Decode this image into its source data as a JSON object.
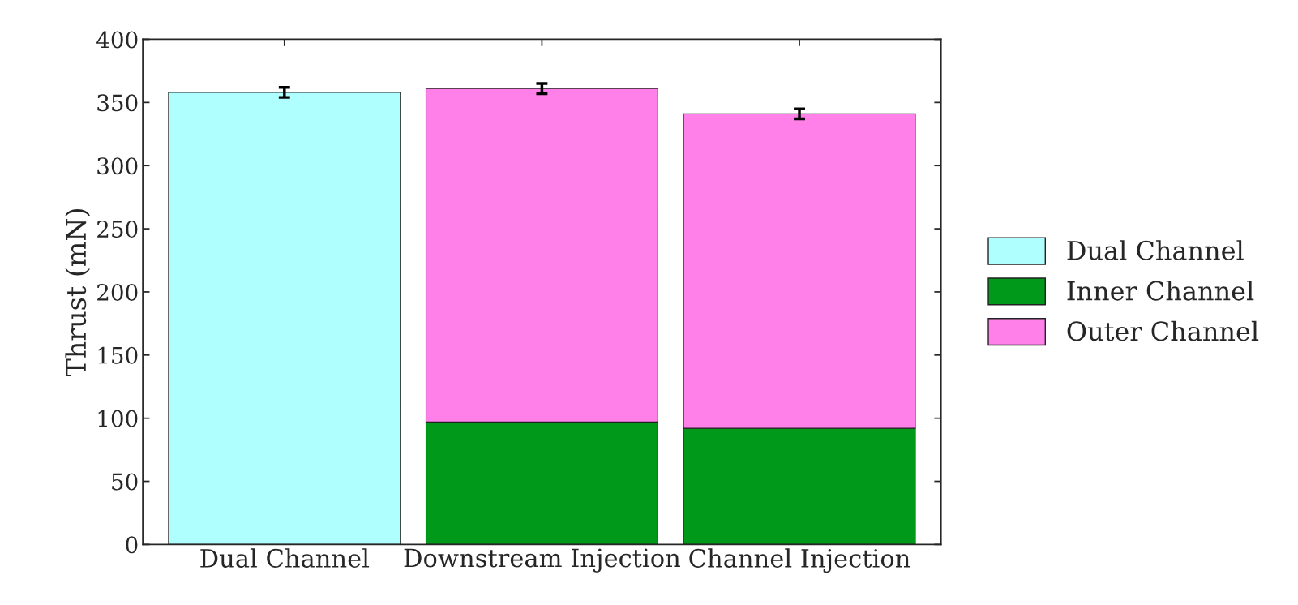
{
  "chart_data": {
    "type": "bar",
    "ylabel": "Thrust (mN)",
    "categories": [
      "Dual Channel",
      "Downstream Injection",
      "Channel Injection"
    ],
    "stacked": true,
    "series": [
      {
        "name": "Dual Channel",
        "color": "#b0ffff",
        "values": [
          358,
          null,
          null
        ],
        "errors": [
          4,
          null,
          null
        ]
      },
      {
        "name": "Inner Channel",
        "color": "#00991a",
        "values": [
          null,
          97,
          92
        ],
        "errors": [
          null,
          null,
          null
        ]
      },
      {
        "name": "Outer Channel",
        "color": "#ff80e8",
        "values": [
          null,
          264,
          249
        ],
        "errors": [
          null,
          4,
          4
        ]
      }
    ],
    "ylim": [
      0,
      400
    ],
    "yticks": [
      0,
      50,
      100,
      150,
      200,
      250,
      300,
      350,
      400
    ],
    "grid": false,
    "legend": "right"
  }
}
